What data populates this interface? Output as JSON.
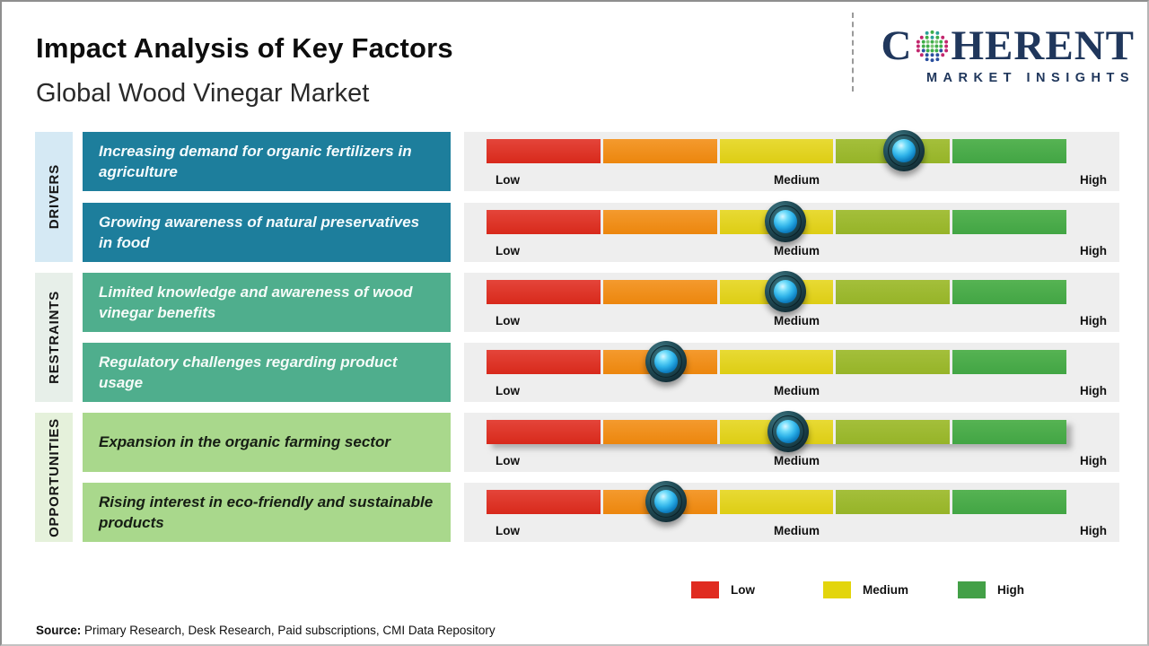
{
  "header": {
    "title": "Impact Analysis of Key Factors",
    "subtitle": "Global Wood Vinegar Market"
  },
  "logo": {
    "brand_first_letter": "C",
    "brand_rest": "HERENT",
    "brand_subtext": "MARKET INSIGHTS",
    "brand_color": "#20375c",
    "globe_icon": "dotted-globe-icon"
  },
  "groups": [
    {
      "label": "DRIVERS"
    },
    {
      "label": "RESTRAINTS"
    },
    {
      "label": "OPPORTUNITIES"
    }
  ],
  "scale": {
    "low": "Low",
    "medium": "Medium",
    "high": "High"
  },
  "rows": [
    {
      "group": "DRIVERS",
      "factor": "Increasing demand for organic fertilizers in agriculture",
      "impact_percent": 72,
      "impact_level": "Medium-High",
      "bar_shadow": false
    },
    {
      "group": "DRIVERS",
      "factor": "Growing awareness of natural preservatives in food",
      "impact_percent": 51.5,
      "impact_level": "Medium",
      "bar_shadow": false
    },
    {
      "group": "RESTRAINTS",
      "factor": "Limited knowledge and awareness of wood vinegar benefits",
      "impact_percent": 51.5,
      "impact_level": "Medium",
      "bar_shadow": false
    },
    {
      "group": "RESTRAINTS",
      "factor": "Regulatory challenges regarding product usage",
      "impact_percent": 31,
      "impact_level": "Low-Medium",
      "bar_shadow": false
    },
    {
      "group": "OPPORTUNITIES",
      "factor": "Expansion in the organic farming sector",
      "impact_percent": 52,
      "impact_level": "Medium",
      "bar_shadow": true
    },
    {
      "group": "OPPORTUNITIES",
      "factor": "Rising interest in eco-friendly and sustainable products",
      "impact_percent": 31,
      "impact_level": "Low-Medium",
      "bar_shadow": false
    }
  ],
  "segment_colors": [
    "#d8291b",
    "#ec860d",
    "#ddcd14",
    "#96b428",
    "#42a544"
  ],
  "legend": [
    {
      "label": "Low",
      "color": "#e02b20"
    },
    {
      "label": "Medium",
      "color": "#e3d50c"
    },
    {
      "label": "High",
      "color": "#43a047"
    }
  ],
  "source": {
    "label": "Source:",
    "text": " Primary Research, Desk Research, Paid subscriptions, CMI Data Repository"
  },
  "chart_data": {
    "type": "bar",
    "title": "Impact Analysis of Key Factors",
    "subtitle": "Global Wood Vinegar Market",
    "scale_labels": [
      "Low",
      "Medium",
      "High"
    ],
    "categories": [
      "Increasing demand for organic fertilizers in agriculture",
      "Growing awareness of natural preservatives in food",
      "Limited knowledge and awareness of wood vinegar benefits",
      "Regulatory challenges regarding product usage",
      "Expansion in the organic farming sector",
      "Rising interest in eco-friendly and sustainable products"
    ],
    "category_groups": [
      "DRIVERS",
      "DRIVERS",
      "RESTRAINTS",
      "RESTRAINTS",
      "OPPORTUNITIES",
      "OPPORTUNITIES"
    ],
    "values": [
      72,
      51.5,
      51.5,
      31,
      52,
      31
    ],
    "value_units": "percent of Low-to-High scale",
    "levels": [
      "Medium-High",
      "Medium",
      "Medium",
      "Low-Medium",
      "Medium",
      "Low-Medium"
    ],
    "xlim": [
      "Low",
      "High"
    ],
    "legend_position": "bottom",
    "legend": [
      "Low",
      "Medium",
      "High"
    ]
  }
}
